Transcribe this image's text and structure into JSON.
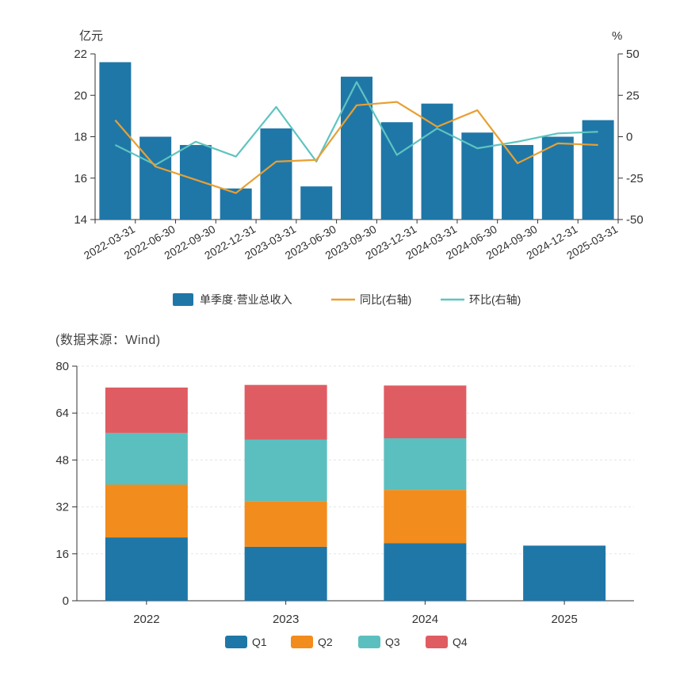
{
  "source_note": "(数据来源：Wind)",
  "colors": {
    "bar": "#1f77a8",
    "yoy": "#e8a033",
    "qoq": "#5ec4c0",
    "q1": "#1f77a8",
    "q2": "#f28c1c",
    "q3": "#5bbfbf",
    "q4": "#e05c63",
    "axis": "#333333",
    "grid": "#e5e5e5"
  },
  "chart_data": [
    {
      "type": "bar",
      "categories": [
        "2022-03-31",
        "2022-06-30",
        "2022-09-30",
        "2022-12-31",
        "2023-03-31",
        "2023-06-30",
        "2023-09-30",
        "2023-12-31",
        "2024-03-31",
        "2024-06-30",
        "2024-09-30",
        "2024-12-31",
        "2025-03-31"
      ],
      "series": [
        {
          "name": "单季度·营业总收入",
          "type": "bar",
          "axis": "left",
          "values": [
            21.6,
            18.0,
            17.6,
            15.5,
            18.4,
            15.6,
            20.9,
            18.7,
            19.6,
            18.2,
            17.6,
            18.0,
            18.8
          ]
        },
        {
          "name": "同比(右轴)",
          "type": "line",
          "axis": "right",
          "values": [
            10,
            -18,
            -26,
            -34,
            -15,
            -14,
            19,
            21,
            6,
            16,
            -16,
            -4,
            -5
          ]
        },
        {
          "name": "环比(右轴)",
          "type": "line",
          "axis": "right",
          "values": [
            -5,
            -17,
            -3,
            -12,
            18,
            -15,
            33,
            -11,
            5,
            -7,
            -3,
            2,
            3
          ]
        }
      ],
      "left_axis": {
        "unit": "亿元",
        "ylim": [
          14,
          22
        ],
        "ticks": [
          "14",
          "16",
          "18",
          "20",
          "22"
        ]
      },
      "right_axis": {
        "unit": "%",
        "ylim": [
          -50,
          50
        ],
        "ticks": [
          "-50",
          "-25",
          "0",
          "25",
          "50"
        ]
      },
      "legend": "bottom"
    },
    {
      "type": "bar",
      "stacked": true,
      "categories": [
        "2022",
        "2023",
        "2024",
        "2025"
      ],
      "series": [
        {
          "name": "Q1",
          "values": [
            21.6,
            18.4,
            19.6,
            18.8
          ]
        },
        {
          "name": "Q2",
          "values": [
            18.0,
            15.6,
            18.2,
            0
          ]
        },
        {
          "name": "Q3",
          "values": [
            17.6,
            20.9,
            17.6,
            0
          ]
        },
        {
          "name": "Q4",
          "values": [
            15.5,
            18.7,
            18.0,
            0
          ]
        }
      ],
      "ylim": [
        0,
        80
      ],
      "ticks": [
        "0",
        "16",
        "32",
        "48",
        "64",
        "80"
      ],
      "grid": true,
      "legend": "bottom"
    }
  ]
}
